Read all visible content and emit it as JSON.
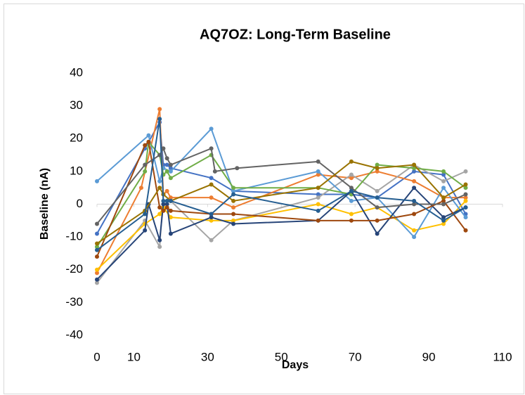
{
  "chart_data": {
    "type": "scatter-line",
    "title": "AQ7OZ: Long-Term Baseline",
    "x_label": "Days",
    "y_label": "Baseline (nA)",
    "xlim": [
      0,
      110
    ],
    "xticks": [
      0,
      10,
      30,
      50,
      70,
      90,
      110
    ],
    "ylim": [
      -40,
      40
    ],
    "yticks": [
      -40,
      -30,
      -20,
      -10,
      0,
      10,
      20,
      30,
      40
    ],
    "grid": false,
    "series": [
      {
        "color": "#4472c4",
        "x": [
          0,
          13,
          14,
          17,
          18,
          19,
          20,
          31,
          37,
          60,
          69,
          76,
          86,
          94,
          100
        ],
        "values": [
          -9,
          17,
          19,
          25,
          12,
          12,
          11,
          8,
          4,
          3,
          3,
          2,
          10,
          9,
          -3
        ]
      },
      {
        "color": "#ed7d31",
        "x": [
          0,
          12,
          17,
          18,
          19,
          20,
          31,
          37,
          60,
          69,
          76,
          86,
          94,
          100
        ],
        "values": [
          -21,
          5,
          29,
          3,
          4,
          2,
          2,
          -1,
          9,
          8,
          10,
          7,
          2,
          2
        ]
      },
      {
        "color": "#a5a5a5",
        "x": [
          0,
          13,
          17,
          18,
          20,
          31,
          37,
          60,
          69,
          76,
          86,
          94,
          100
        ],
        "values": [
          -24,
          -5,
          -13,
          3,
          1,
          -11,
          -5,
          2,
          9,
          4,
          12,
          7,
          10
        ]
      },
      {
        "color": "#ffc000",
        "x": [
          0,
          13,
          17,
          18,
          20,
          31,
          37,
          60,
          69,
          76,
          86,
          94,
          100
        ],
        "values": [
          -20,
          -6,
          -3,
          -1,
          -4,
          -5,
          -5,
          0,
          -3,
          -1,
          -8,
          -6,
          1
        ]
      },
      {
        "color": "#5b9bd5",
        "x": [
          0,
          14,
          17,
          18,
          20,
          31,
          37,
          60,
          69,
          76,
          86,
          94,
          100
        ],
        "values": [
          7,
          21,
          7,
          11,
          10,
          23,
          4,
          10,
          1,
          2,
          -10,
          5,
          -4
        ]
      },
      {
        "color": "#70ad47",
        "x": [
          0,
          13,
          14,
          17,
          18,
          19,
          20,
          31,
          37,
          60,
          69,
          76,
          86,
          94,
          100
        ],
        "values": [
          -13,
          10,
          19,
          15,
          9,
          10,
          8,
          15,
          5,
          5,
          3,
          12,
          11,
          10,
          5
        ]
      },
      {
        "color": "#264478",
        "x": [
          0,
          13,
          14,
          17,
          18,
          19,
          20,
          31,
          37,
          60,
          69,
          76,
          86,
          94,
          100
        ],
        "values": [
          -23,
          -8,
          0,
          -11,
          0,
          0,
          -9,
          -4,
          -6,
          -5,
          4,
          -9,
          5,
          -4,
          -1
        ]
      },
      {
        "color": "#9e480e",
        "x": [
          0,
          13,
          14,
          17,
          18,
          19,
          20,
          31,
          37,
          60,
          69,
          76,
          86,
          94,
          100
        ],
        "values": [
          -16,
          18,
          19,
          -1,
          -2,
          -1,
          -2,
          -3,
          -3,
          -5,
          -5,
          -5,
          -3,
          1,
          -8
        ]
      },
      {
        "color": "#636363",
        "x": [
          0,
          13,
          17,
          18,
          19,
          20,
          31,
          32,
          38,
          60,
          69,
          76,
          86,
          94,
          100
        ],
        "values": [
          -6,
          12,
          15,
          17,
          14,
          12,
          17,
          10,
          11,
          13,
          5,
          -1,
          0,
          0,
          3
        ]
      },
      {
        "color": "#997300",
        "x": [
          0,
          13,
          17,
          18,
          20,
          31,
          37,
          60,
          69,
          76,
          86,
          94,
          100
        ],
        "values": [
          -12,
          -2,
          5,
          3,
          1,
          6,
          1,
          5,
          13,
          11,
          12,
          2,
          6
        ]
      },
      {
        "color": "#255e91",
        "x": [
          0,
          13,
          17,
          18,
          19,
          20,
          31,
          37,
          60,
          69,
          76,
          86,
          94,
          100
        ],
        "values": [
          -14,
          -3,
          26,
          1,
          1,
          1,
          -3,
          3,
          -2,
          4,
          2,
          1,
          -5,
          -1
        ]
      }
    ]
  }
}
